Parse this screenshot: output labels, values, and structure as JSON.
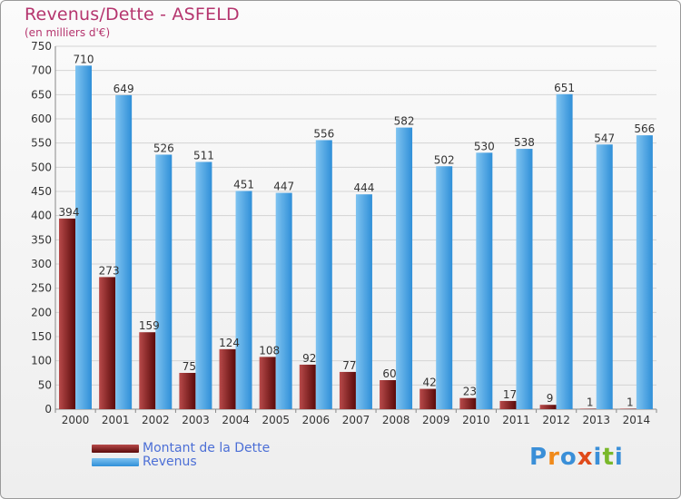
{
  "title": "Revenus/Dette - ASFELD",
  "subtitle": "(en milliers d'€)",
  "colors": {
    "dette_top": "#b84a4a",
    "dette_bottom": "#5a0a0a",
    "revenus_top": "#7fc3f0",
    "revenus_bottom": "#2f8fd8",
    "title": "#b5356e",
    "legend_text": "#4c6fd6"
  },
  "chart_data": {
    "type": "bar",
    "categories": [
      "2000",
      "2001",
      "2002",
      "2003",
      "2004",
      "2005",
      "2006",
      "2007",
      "2008",
      "2009",
      "2010",
      "2011",
      "2012",
      "2013",
      "2014"
    ],
    "series": [
      {
        "name": "Montant de la Dette",
        "values": [
          394,
          273,
          159,
          75,
          124,
          108,
          92,
          77,
          60,
          42,
          23,
          17,
          9,
          1,
          1
        ]
      },
      {
        "name": "Revenus",
        "values": [
          710,
          649,
          526,
          511,
          451,
          447,
          556,
          444,
          582,
          502,
          530,
          538,
          651,
          547,
          566
        ]
      }
    ],
    "ylim": [
      0,
      750
    ],
    "yticks": [
      0,
      50,
      100,
      150,
      200,
      250,
      300,
      350,
      400,
      450,
      500,
      550,
      600,
      650,
      700,
      750
    ],
    "grid": true,
    "legend": "bottom-left"
  },
  "legend": {
    "dette_label": "Montant de la Dette",
    "revenus_label": "Revenus"
  },
  "logo": {
    "letters": [
      "P",
      "r",
      "o",
      "x",
      "i",
      "t",
      "i"
    ],
    "letter_colors": [
      "#3a8fd8",
      "#f08a1a",
      "#3a8fd8",
      "#e04a1a",
      "#3a8fd8",
      "#7ab82a",
      "#3a8fd8"
    ]
  }
}
